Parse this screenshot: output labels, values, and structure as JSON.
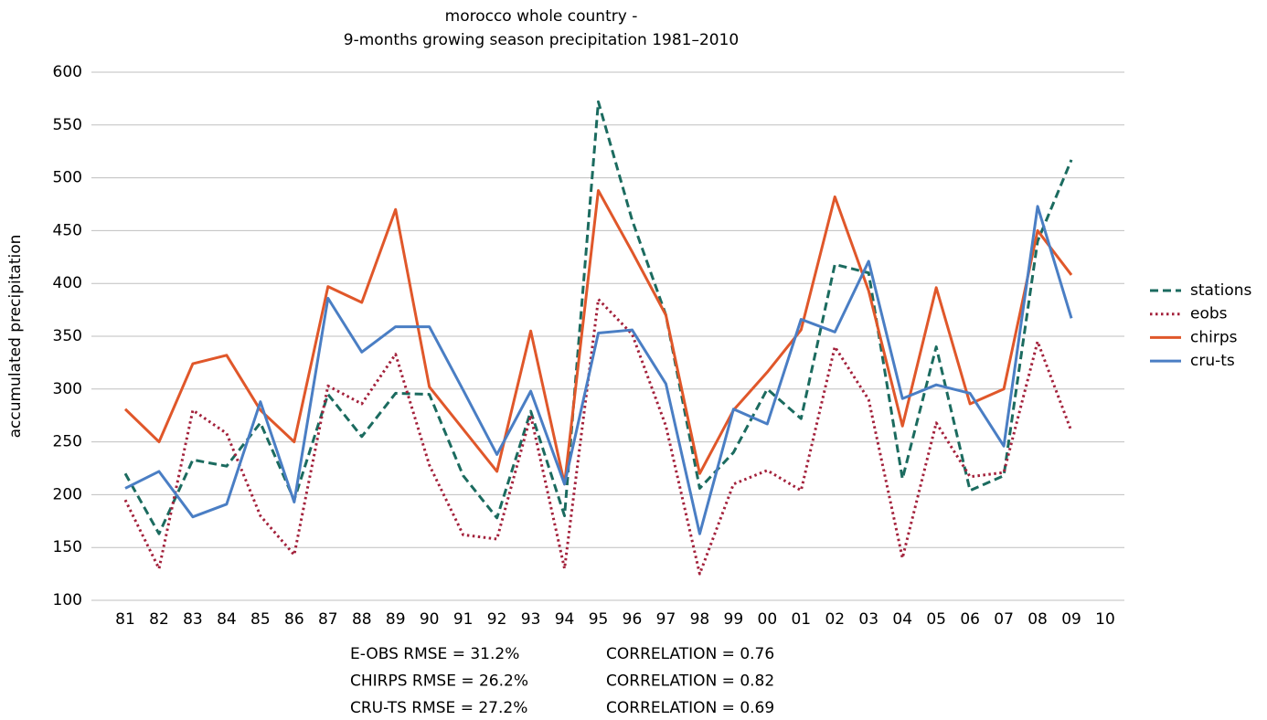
{
  "chart_data": {
    "type": "line",
    "title": "morocco whole country -",
    "subtitle": "9-months growing season precipitation 1981–2010",
    "y_label": "accumulated precipitation",
    "categories": [
      "81",
      "82",
      "83",
      "84",
      "85",
      "86",
      "87",
      "88",
      "89",
      "90",
      "91",
      "92",
      "93",
      "94",
      "95",
      "96",
      "97",
      "98",
      "99",
      "00",
      "01",
      "02",
      "03",
      "04",
      "05",
      "06",
      "07",
      "08",
      "09",
      "10"
    ],
    "series": [
      {
        "name": "stations",
        "color": "#1b6b5f",
        "dash": "dashed",
        "values": [
          220,
          163,
          233,
          227,
          268,
          195,
          295,
          255,
          296,
          295,
          218,
          178,
          279,
          180,
          572,
          460,
          370,
          206,
          240,
          300,
          272,
          418,
          410,
          215,
          340,
          204,
          218,
          440,
          517,
          null
        ]
      },
      {
        "name": "eobs",
        "color": "#a3213b",
        "dash": "dotted",
        "values": [
          195,
          130,
          280,
          258,
          180,
          143,
          303,
          286,
          333,
          228,
          162,
          158,
          275,
          130,
          385,
          352,
          265,
          125,
          210,
          223,
          204,
          340,
          290,
          140,
          268,
          217,
          221,
          345,
          260,
          null
        ]
      },
      {
        "name": "chirps",
        "color": "#e0572a",
        "dash": "solid",
        "values": [
          281,
          250,
          324,
          332,
          280,
          250,
          397,
          382,
          470,
          302,
          262,
          222,
          355,
          210,
          488,
          430,
          370,
          220,
          280,
          316,
          356,
          482,
          393,
          265,
          396,
          286,
          300,
          450,
          408,
          null
        ]
      },
      {
        "name": "cru-ts",
        "color": "#4a7ec4",
        "dash": "solid",
        "values": [
          206,
          222,
          179,
          191,
          288,
          193,
          386,
          335,
          359,
          359,
          299,
          238,
          298,
          210,
          353,
          356,
          305,
          163,
          281,
          267,
          366,
          354,
          421,
          291,
          304,
          296,
          246,
          473,
          367,
          null
        ]
      }
    ],
    "ylim": [
      100,
      600
    ],
    "yticks": [
      100,
      150,
      200,
      250,
      300,
      350,
      400,
      450,
      500,
      550,
      600
    ],
    "grid": true,
    "legend": "right",
    "annotations": [
      "E-OBS RMSE = 31.2%",
      "CORRELATION = 0.76",
      "CHIRPS RMSE = 26.2%",
      "CORRELATION = 0.82",
      "CRU-TS RMSE = 27.2%",
      "CORRELATION = 0.69"
    ]
  }
}
